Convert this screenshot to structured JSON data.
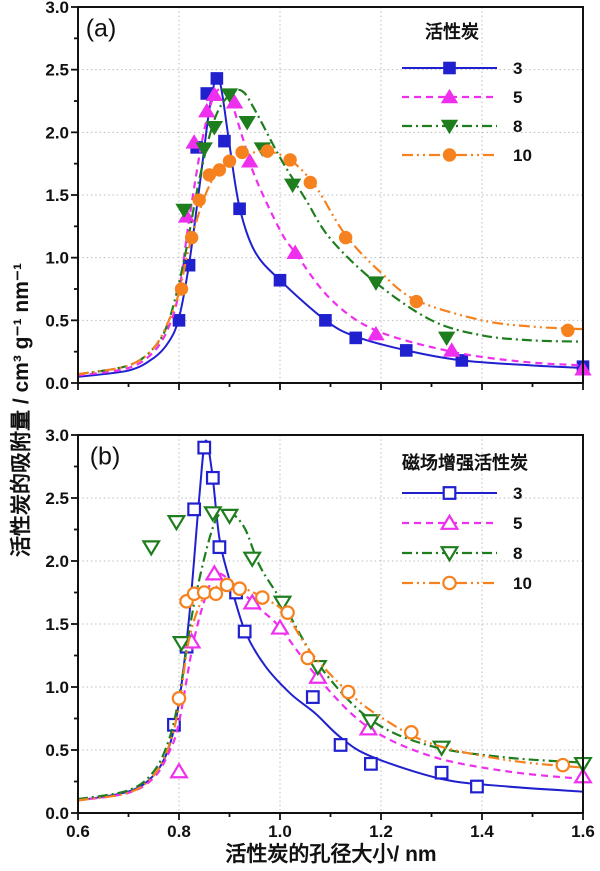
{
  "figure": {
    "x_axis": {
      "label": "活性炭的孔径大小/ nm",
      "tick_labels": [
        "0.6",
        "0.8",
        "1.0",
        "1.2",
        "1.4",
        "1.6"
      ],
      "min": 0.6,
      "max": 1.6,
      "major_step": 0.2,
      "minor_step": 0.1
    },
    "y_axis": {
      "label": "活性炭的吸附量 / cm³ g⁻¹ nm⁻¹",
      "tick_labels": [
        "0.0",
        "0.5",
        "1.0",
        "1.5",
        "2.0",
        "2.5",
        "3.0"
      ],
      "min": 0.0,
      "max": 3.0,
      "major_step": 0.5,
      "minor_step": 0.25
    },
    "grid": {
      "color": "#bcbcbc",
      "style": "dotted",
      "vertical_at": [
        0.8,
        1.0,
        1.2,
        1.4
      ],
      "horizontal_at": [
        0.5,
        1.0,
        1.5,
        2.0,
        2.5
      ]
    },
    "axis_color": "#111111"
  },
  "chart_data": [
    {
      "panel": "a",
      "panel_label": "(a)",
      "type": "line",
      "legend_title": "活性炭",
      "legend_position": "top-right",
      "xlim": [
        0.6,
        1.6
      ],
      "ylim": [
        0.0,
        3.0
      ],
      "series": [
        {
          "label": "3",
          "color": "#2020cf",
          "line_style": "solid",
          "marker": "square",
          "marker_fill": "filled",
          "points": [
            [
              0.8,
              0.5
            ],
            [
              0.82,
              0.94
            ],
            [
              0.835,
              1.88
            ],
            [
              0.855,
              2.31
            ],
            [
              0.875,
              2.43
            ],
            [
              0.89,
              1.93
            ],
            [
              0.92,
              1.39
            ],
            [
              1.0,
              0.82
            ],
            [
              1.09,
              0.5
            ],
            [
              1.15,
              0.36
            ],
            [
              1.25,
              0.26
            ],
            [
              1.36,
              0.18
            ],
            [
              1.6,
              0.13
            ]
          ],
          "fit_curve": [
            [
              0.6,
              0.05
            ],
            [
              0.7,
              0.1
            ],
            [
              0.75,
              0.2
            ],
            [
              0.78,
              0.33
            ],
            [
              0.8,
              0.52
            ],
            [
              0.82,
              0.95
            ],
            [
              0.84,
              1.55
            ],
            [
              0.86,
              2.18
            ],
            [
              0.875,
              2.45
            ],
            [
              0.885,
              2.32
            ],
            [
              0.9,
              1.9
            ],
            [
              0.92,
              1.4
            ],
            [
              0.95,
              1.05
            ],
            [
              1.0,
              0.82
            ],
            [
              1.09,
              0.5
            ],
            [
              1.15,
              0.37
            ],
            [
              1.25,
              0.26
            ],
            [
              1.36,
              0.18
            ],
            [
              1.5,
              0.14
            ],
            [
              1.6,
              0.12
            ]
          ]
        },
        {
          "label": "5",
          "color": "#ee30ee",
          "line_style": "dashed",
          "marker": "triangle-up",
          "marker_fill": "filled",
          "points": [
            [
              0.815,
              1.33
            ],
            [
              0.83,
              1.92
            ],
            [
              0.855,
              2.17
            ],
            [
              0.87,
              2.3
            ],
            [
              0.91,
              2.24
            ],
            [
              0.94,
              1.77
            ],
            [
              1.03,
              1.04
            ],
            [
              1.19,
              0.39
            ],
            [
              1.34,
              0.26
            ],
            [
              1.6,
              0.11
            ]
          ],
          "fit_curve": [
            [
              0.6,
              0.06
            ],
            [
              0.7,
              0.12
            ],
            [
              0.75,
              0.25
            ],
            [
              0.78,
              0.45
            ],
            [
              0.8,
              0.73
            ],
            [
              0.82,
              1.3
            ],
            [
              0.85,
              2.02
            ],
            [
              0.875,
              2.33
            ],
            [
              0.9,
              2.27
            ],
            [
              0.925,
              1.97
            ],
            [
              0.95,
              1.65
            ],
            [
              1.0,
              1.22
            ],
            [
              1.03,
              1.04
            ],
            [
              1.1,
              0.67
            ],
            [
              1.19,
              0.42
            ],
            [
              1.34,
              0.25
            ],
            [
              1.48,
              0.17
            ],
            [
              1.6,
              0.14
            ]
          ]
        },
        {
          "label": "8",
          "color": "#1e7e1e",
          "line_style": "dash-dot",
          "marker": "triangle-down",
          "marker_fill": "filled",
          "points": [
            [
              0.81,
              1.38
            ],
            [
              0.85,
              1.87
            ],
            [
              0.87,
              2.04
            ],
            [
              0.9,
              2.3
            ],
            [
              0.935,
              2.08
            ],
            [
              0.965,
              1.87
            ],
            [
              1.025,
              1.58
            ],
            [
              1.19,
              0.8
            ],
            [
              1.33,
              0.36
            ]
          ],
          "fit_curve": [
            [
              0.6,
              0.07
            ],
            [
              0.7,
              0.14
            ],
            [
              0.75,
              0.28
            ],
            [
              0.78,
              0.5
            ],
            [
              0.81,
              0.98
            ],
            [
              0.84,
              1.62
            ],
            [
              0.87,
              2.1
            ],
            [
              0.9,
              2.3
            ],
            [
              0.925,
              2.33
            ],
            [
              0.95,
              2.18
            ],
            [
              1.0,
              1.8
            ],
            [
              1.05,
              1.47
            ],
            [
              1.1,
              1.15
            ],
            [
              1.19,
              0.8
            ],
            [
              1.3,
              0.5
            ],
            [
              1.4,
              0.38
            ],
            [
              1.5,
              0.34
            ],
            [
              1.6,
              0.33
            ]
          ]
        },
        {
          "label": "10",
          "color": "#f5821f",
          "line_style": "dash-dot-dot",
          "marker": "circle",
          "marker_fill": "filled",
          "points": [
            [
              0.805,
              0.75
            ],
            [
              0.825,
              1.16
            ],
            [
              0.84,
              1.46
            ],
            [
              0.86,
              1.66
            ],
            [
              0.88,
              1.7
            ],
            [
              0.9,
              1.77
            ],
            [
              0.925,
              1.84
            ],
            [
              0.975,
              1.85
            ],
            [
              1.02,
              1.78
            ],
            [
              1.06,
              1.6
            ],
            [
              1.13,
              1.16
            ],
            [
              1.27,
              0.65
            ],
            [
              1.57,
              0.42
            ]
          ],
          "fit_curve": [
            [
              0.6,
              0.07
            ],
            [
              0.7,
              0.14
            ],
            [
              0.75,
              0.28
            ],
            [
              0.78,
              0.5
            ],
            [
              0.8,
              0.72
            ],
            [
              0.82,
              1.08
            ],
            [
              0.85,
              1.48
            ],
            [
              0.88,
              1.7
            ],
            [
              0.92,
              1.8
            ],
            [
              0.97,
              1.85
            ],
            [
              1.02,
              1.78
            ],
            [
              1.07,
              1.57
            ],
            [
              1.13,
              1.18
            ],
            [
              1.2,
              0.88
            ],
            [
              1.27,
              0.66
            ],
            [
              1.4,
              0.5
            ],
            [
              1.5,
              0.45
            ],
            [
              1.6,
              0.43
            ]
          ]
        }
      ]
    },
    {
      "panel": "b",
      "panel_label": "(b)",
      "type": "line",
      "legend_title": "磁场增强活性炭",
      "legend_position": "top-right",
      "xlim": [
        0.6,
        1.6
      ],
      "ylim": [
        0.0,
        3.0
      ],
      "series": [
        {
          "label": "3",
          "color": "#2020cf",
          "line_style": "solid",
          "marker": "square",
          "marker_fill": "open",
          "points": [
            [
              0.79,
              0.7
            ],
            [
              0.815,
              1.32
            ],
            [
              0.83,
              2.41
            ],
            [
              0.85,
              2.9
            ],
            [
              0.867,
              2.66
            ],
            [
              0.88,
              2.11
            ],
            [
              0.913,
              1.75
            ],
            [
              0.93,
              1.44
            ],
            [
              1.065,
              0.92
            ],
            [
              1.12,
              0.54
            ],
            [
              1.18,
              0.39
            ],
            [
              1.32,
              0.32
            ],
            [
              1.39,
              0.21
            ]
          ],
          "fit_curve": [
            [
              0.6,
              0.1
            ],
            [
              0.7,
              0.17
            ],
            [
              0.75,
              0.3
            ],
            [
              0.78,
              0.52
            ],
            [
              0.8,
              0.88
            ],
            [
              0.82,
              1.55
            ],
            [
              0.84,
              2.5
            ],
            [
              0.852,
              2.95
            ],
            [
              0.865,
              2.72
            ],
            [
              0.88,
              2.18
            ],
            [
              0.9,
              1.85
            ],
            [
              0.93,
              1.45
            ],
            [
              0.97,
              1.17
            ],
            [
              1.02,
              0.95
            ],
            [
              1.07,
              0.79
            ],
            [
              1.12,
              0.6
            ],
            [
              1.18,
              0.45
            ],
            [
              1.32,
              0.27
            ],
            [
              1.45,
              0.21
            ],
            [
              1.6,
              0.17
            ]
          ]
        },
        {
          "label": "5",
          "color": "#ee30ee",
          "line_style": "dashed",
          "marker": "triangle-up",
          "marker_fill": "open",
          "points": [
            [
              0.8,
              0.33
            ],
            [
              0.825,
              1.36
            ],
            [
              0.87,
              1.9
            ],
            [
              0.945,
              1.67
            ],
            [
              1.0,
              1.47
            ],
            [
              1.075,
              1.08
            ],
            [
              1.175,
              0.67
            ],
            [
              1.6,
              0.29
            ]
          ],
          "fit_curve": [
            [
              0.6,
              0.1
            ],
            [
              0.7,
              0.16
            ],
            [
              0.75,
              0.28
            ],
            [
              0.78,
              0.48
            ],
            [
              0.8,
              0.72
            ],
            [
              0.83,
              1.38
            ],
            [
              0.86,
              1.8
            ],
            [
              0.88,
              1.9
            ],
            [
              0.92,
              1.77
            ],
            [
              0.96,
              1.62
            ],
            [
              1.0,
              1.47
            ],
            [
              1.08,
              1.05
            ],
            [
              1.175,
              0.68
            ],
            [
              1.3,
              0.45
            ],
            [
              1.45,
              0.33
            ],
            [
              1.6,
              0.27
            ]
          ]
        },
        {
          "label": "8",
          "color": "#1e7e1e",
          "line_style": "dash-dot",
          "marker": "triangle-down",
          "marker_fill": "open",
          "points": [
            [
              0.745,
              2.11
            ],
            [
              0.795,
              2.31
            ],
            [
              0.805,
              1.35
            ],
            [
              0.867,
              2.38
            ],
            [
              0.9,
              2.36
            ],
            [
              0.945,
              2.02
            ],
            [
              1.005,
              1.67
            ],
            [
              1.075,
              1.16
            ],
            [
              1.18,
              0.73
            ],
            [
              1.32,
              0.52
            ],
            [
              1.6,
              0.39
            ]
          ],
          "fit_curve": [
            [
              0.6,
              0.11
            ],
            [
              0.7,
              0.18
            ],
            [
              0.75,
              0.33
            ],
            [
              0.78,
              0.58
            ],
            [
              0.8,
              0.92
            ],
            [
              0.83,
              1.66
            ],
            [
              0.87,
              2.3
            ],
            [
              0.9,
              2.38
            ],
            [
              0.93,
              2.26
            ],
            [
              0.96,
              1.96
            ],
            [
              1.005,
              1.67
            ],
            [
              1.08,
              1.16
            ],
            [
              1.18,
              0.74
            ],
            [
              1.3,
              0.53
            ],
            [
              1.45,
              0.44
            ],
            [
              1.6,
              0.4
            ]
          ]
        },
        {
          "label": "10",
          "color": "#f5821f",
          "line_style": "dash-dot-dot",
          "marker": "circle",
          "marker_fill": "open",
          "points": [
            [
              0.8,
              0.91
            ],
            [
              0.815,
              1.68
            ],
            [
              0.83,
              1.74
            ],
            [
              0.85,
              1.75
            ],
            [
              0.873,
              1.74
            ],
            [
              0.895,
              1.81
            ],
            [
              0.92,
              1.78
            ],
            [
              0.965,
              1.71
            ],
            [
              1.015,
              1.59
            ],
            [
              1.055,
              1.23
            ],
            [
              1.135,
              0.96
            ],
            [
              1.26,
              0.64
            ],
            [
              1.56,
              0.38
            ]
          ],
          "fit_curve": [
            [
              0.6,
              0.1
            ],
            [
              0.7,
              0.16
            ],
            [
              0.75,
              0.3
            ],
            [
              0.78,
              0.53
            ],
            [
              0.8,
              0.85
            ],
            [
              0.82,
              1.38
            ],
            [
              0.85,
              1.72
            ],
            [
              0.89,
              1.81
            ],
            [
              0.93,
              1.78
            ],
            [
              0.97,
              1.7
            ],
            [
              1.01,
              1.59
            ],
            [
              1.06,
              1.28
            ],
            [
              1.135,
              0.96
            ],
            [
              1.2,
              0.76
            ],
            [
              1.3,
              0.55
            ],
            [
              1.45,
              0.42
            ],
            [
              1.6,
              0.36
            ]
          ]
        }
      ]
    }
  ]
}
